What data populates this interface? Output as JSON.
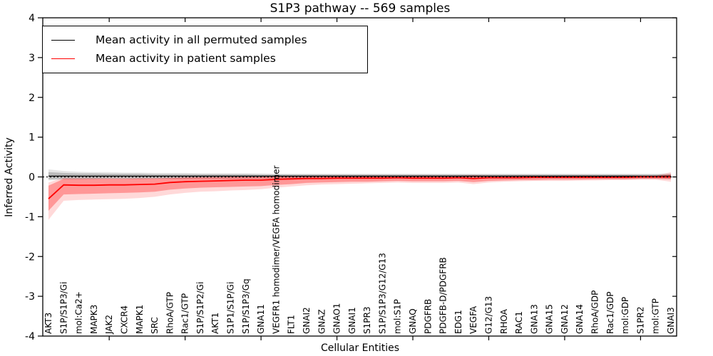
{
  "chart_data": {
    "type": "line",
    "title": "S1P3 pathway -- 569 samples",
    "xlabel": "Cellular Entities",
    "ylabel": "Inferred Activity",
    "ylim": [
      -4,
      4
    ],
    "yticks": [
      4,
      3,
      2,
      1,
      0,
      -1,
      -2,
      -3,
      -4
    ],
    "x_major_tick_indices": [
      4,
      9,
      14,
      19,
      24,
      29,
      34,
      39
    ],
    "grid": false,
    "legend_position": "upper left",
    "zero_line_style": "dotted",
    "categories": [
      "AKT3",
      "S1P/S1P3/Gi",
      "mol:Ca2+",
      "MAPK3",
      "JAK2",
      "CXCR4",
      "MAPK1",
      "SRC",
      "RhoA/GTP",
      "Rac1/GTP",
      "S1P/S1P2/Gi",
      "AKT1",
      "S1P1/S1P/Gi",
      "S1P/S1P3/Gq",
      "GNA11",
      "VEGFR1 homodimer/VEGFA homodimer",
      "FLT1",
      "GNAI2",
      "GNAZ",
      "GNAO1",
      "GNAI1",
      "S1PR3",
      "S1P/S1P3/G12/G13",
      "mol:S1P",
      "GNAQ",
      "PDGFRB",
      "PDGFB-D/PDGFRB",
      "EDG1",
      "VEGFA",
      "G12/G13",
      "RHOA",
      "RAC1",
      "GNA13",
      "GNA15",
      "GNA12",
      "GNA14",
      "RhoA/GDP",
      "Rac1/GDP",
      "mol:GDP",
      "S1PR2",
      "mol:GTP",
      "GNAI3"
    ],
    "series": [
      {
        "name": "Mean activity in all permuted samples",
        "color": "#000000",
        "line_style": "solid",
        "values": [
          0.02,
          0.02,
          0.02,
          0.02,
          0.02,
          0.02,
          0.02,
          0.02,
          0.02,
          0.02,
          0.02,
          0.02,
          0.02,
          0.02,
          0.02,
          0.02,
          0.02,
          0.02,
          0.02,
          0.02,
          0.02,
          0.02,
          0.02,
          0.02,
          0.02,
          0.02,
          0.02,
          0.02,
          0.02,
          0.02,
          0.02,
          0.02,
          0.02,
          0.02,
          0.02,
          0.02,
          0.02,
          0.02,
          0.02,
          0.02,
          0.02,
          0.02
        ],
        "band_inner_upper": [
          0.12,
          0.1,
          0.09,
          0.09,
          0.08,
          0.08,
          0.08,
          0.07,
          0.07,
          0.07,
          0.07,
          0.07,
          0.07,
          0.07,
          0.06,
          0.06,
          0.06,
          0.06,
          0.06,
          0.06,
          0.06,
          0.06,
          0.06,
          0.06,
          0.06,
          0.06,
          0.06,
          0.06,
          0.06,
          0.06,
          0.06,
          0.06,
          0.06,
          0.06,
          0.06,
          0.06,
          0.06,
          0.06,
          0.06,
          0.06,
          0.06,
          0.07
        ],
        "band_inner_lower": [
          -0.06,
          -0.05,
          -0.05,
          -0.05,
          -0.04,
          -0.04,
          -0.04,
          -0.04,
          -0.04,
          -0.04,
          -0.03,
          -0.03,
          -0.03,
          -0.03,
          -0.03,
          -0.03,
          -0.03,
          -0.03,
          -0.02,
          -0.02,
          -0.02,
          -0.02,
          -0.02,
          -0.02,
          -0.02,
          -0.02,
          -0.02,
          -0.02,
          -0.02,
          -0.02,
          -0.02,
          -0.02,
          -0.02,
          -0.02,
          -0.02,
          -0.02,
          -0.02,
          -0.02,
          -0.02,
          -0.02,
          -0.02,
          -0.03
        ],
        "band_outer_upper": [
          0.19,
          0.15,
          0.13,
          0.12,
          0.12,
          0.11,
          0.11,
          0.1,
          0.1,
          0.1,
          0.09,
          0.09,
          0.09,
          0.09,
          0.09,
          0.08,
          0.08,
          0.08,
          0.08,
          0.08,
          0.08,
          0.08,
          0.08,
          0.08,
          0.08,
          0.08,
          0.08,
          0.08,
          0.08,
          0.08,
          0.08,
          0.08,
          0.08,
          0.08,
          0.08,
          0.08,
          0.08,
          0.08,
          0.08,
          0.08,
          0.08,
          0.09
        ],
        "band_outer_lower": [
          -0.09,
          -0.07,
          -0.07,
          -0.06,
          -0.06,
          -0.06,
          -0.06,
          -0.05,
          -0.05,
          -0.05,
          -0.05,
          -0.05,
          -0.05,
          -0.05,
          -0.04,
          -0.04,
          -0.04,
          -0.04,
          -0.04,
          -0.04,
          -0.04,
          -0.04,
          -0.04,
          -0.04,
          -0.04,
          -0.04,
          -0.04,
          -0.04,
          -0.04,
          -0.04,
          -0.04,
          -0.04,
          -0.04,
          -0.04,
          -0.04,
          -0.04,
          -0.04,
          -0.04,
          -0.04,
          -0.04,
          -0.04,
          -0.05
        ]
      },
      {
        "name": "Mean activity in patient samples",
        "color": "#ff0000",
        "line_style": "solid",
        "values": [
          -0.55,
          -0.2,
          -0.21,
          -0.21,
          -0.2,
          -0.2,
          -0.19,
          -0.18,
          -0.14,
          -0.12,
          -0.11,
          -0.1,
          -0.09,
          -0.08,
          -0.08,
          -0.06,
          -0.05,
          -0.04,
          -0.04,
          -0.03,
          -0.03,
          -0.03,
          -0.03,
          -0.02,
          -0.03,
          -0.03,
          -0.03,
          -0.02,
          -0.04,
          -0.02,
          -0.02,
          -0.02,
          -0.01,
          -0.01,
          -0.01,
          -0.01,
          -0.01,
          -0.01,
          -0.01,
          0.0,
          0.0,
          0.0
        ],
        "band_inner_upper": [
          -0.22,
          -0.05,
          -0.05,
          -0.05,
          -0.05,
          -0.05,
          -0.04,
          -0.04,
          -0.03,
          -0.02,
          -0.01,
          -0.01,
          0.0,
          0.0,
          0.0,
          0.01,
          0.01,
          0.01,
          0.01,
          0.02,
          0.02,
          0.02,
          0.02,
          0.02,
          0.02,
          0.02,
          0.02,
          0.02,
          0.03,
          0.02,
          0.02,
          0.02,
          0.02,
          0.02,
          0.02,
          0.02,
          0.02,
          0.02,
          0.02,
          0.02,
          0.02,
          0.06
        ],
        "band_inner_lower": [
          -0.85,
          -0.44,
          -0.43,
          -0.42,
          -0.41,
          -0.4,
          -0.39,
          -0.37,
          -0.32,
          -0.29,
          -0.27,
          -0.26,
          -0.25,
          -0.24,
          -0.23,
          -0.2,
          -0.18,
          -0.15,
          -0.14,
          -0.13,
          -0.12,
          -0.12,
          -0.11,
          -0.1,
          -0.11,
          -0.11,
          -0.11,
          -0.1,
          -0.13,
          -0.1,
          -0.09,
          -0.08,
          -0.08,
          -0.07,
          -0.07,
          -0.07,
          -0.06,
          -0.06,
          -0.06,
          -0.05,
          -0.05,
          -0.06
        ],
        "band_outer_upper": [
          -0.14,
          -0.02,
          -0.02,
          -0.02,
          -0.02,
          -0.02,
          -0.02,
          -0.02,
          -0.01,
          0.0,
          0.0,
          0.01,
          0.01,
          0.01,
          0.01,
          0.02,
          0.02,
          0.02,
          0.02,
          0.03,
          0.03,
          0.03,
          0.03,
          0.03,
          0.03,
          0.03,
          0.03,
          0.03,
          0.05,
          0.03,
          0.03,
          0.03,
          0.03,
          0.03,
          0.03,
          0.03,
          0.03,
          0.03,
          0.03,
          0.03,
          0.03,
          0.12
        ],
        "band_outer_lower": [
          -1.08,
          -0.6,
          -0.58,
          -0.57,
          -0.56,
          -0.55,
          -0.53,
          -0.5,
          -0.44,
          -0.4,
          -0.37,
          -0.36,
          -0.34,
          -0.33,
          -0.31,
          -0.27,
          -0.24,
          -0.21,
          -0.19,
          -0.18,
          -0.17,
          -0.16,
          -0.15,
          -0.14,
          -0.15,
          -0.15,
          -0.15,
          -0.14,
          -0.18,
          -0.14,
          -0.12,
          -0.11,
          -0.1,
          -0.1,
          -0.1,
          -0.09,
          -0.09,
          -0.08,
          -0.08,
          -0.07,
          -0.07,
          -0.12
        ]
      }
    ]
  },
  "styles": {
    "gray_band_inner_opacity": 0.18,
    "gray_band_outer_opacity": 0.1,
    "red_band_inner_opacity": 0.3,
    "red_band_outer_opacity": 0.15
  }
}
